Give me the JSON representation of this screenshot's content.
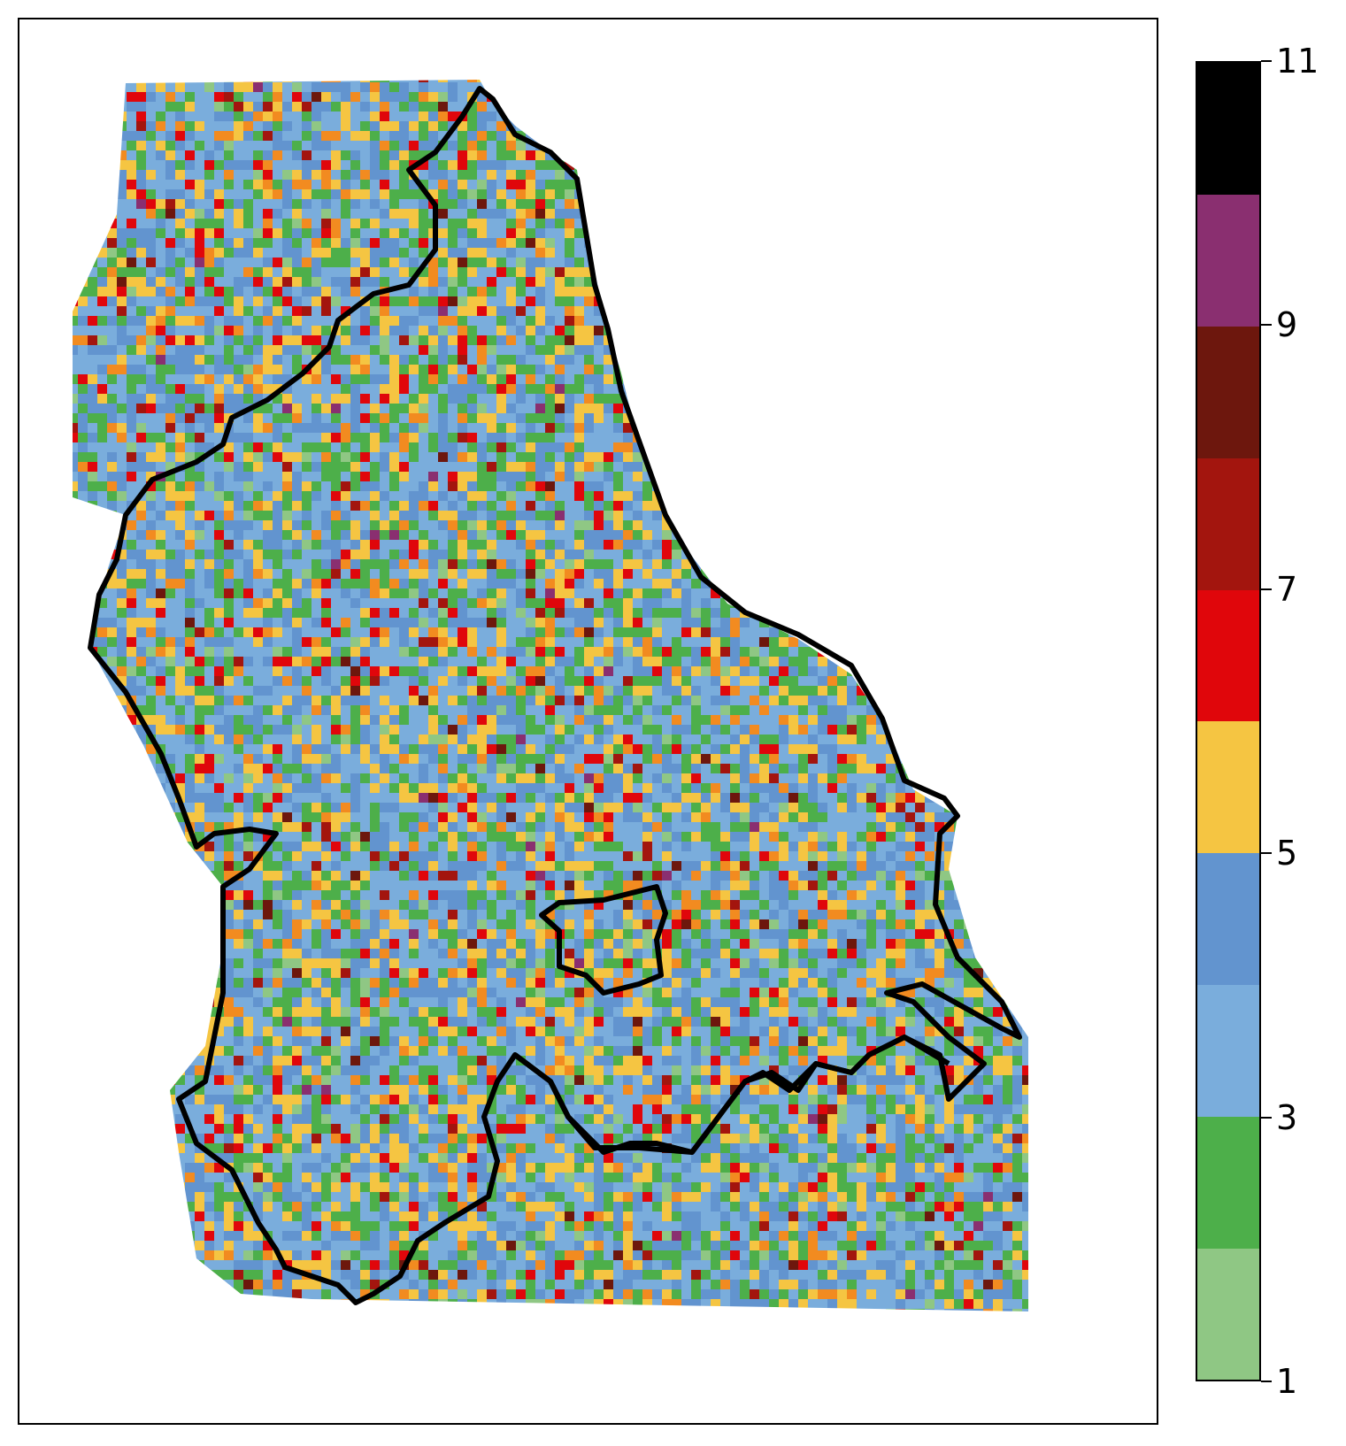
{
  "colorbar": {
    "min": 1,
    "max": 11,
    "colors": [
      "#8fc784",
      "#4daf4a",
      "#7aaddc",
      "#6294cf",
      "#f5c542",
      "#e0060b",
      "#a3150e",
      "#6d170d",
      "#8a2f70",
      "#000000"
    ],
    "ticks": [
      {
        "value": 1,
        "label": "1"
      },
      {
        "value": 3,
        "label": "3"
      },
      {
        "value": 5,
        "label": "5"
      },
      {
        "value": 7,
        "label": "7"
      },
      {
        "value": 9,
        "label": "9"
      },
      {
        "value": 11,
        "label": "11"
      }
    ]
  },
  "map": {
    "cell_colors": [
      "#8fc784",
      "#4daf4a",
      "#7aaddc",
      "#6294cf",
      "#f5c542",
      "#f28b20",
      "#e0060b",
      "#a3150e",
      "#6d170d",
      "#8a2f70"
    ],
    "boundary_color": "#000000"
  }
}
